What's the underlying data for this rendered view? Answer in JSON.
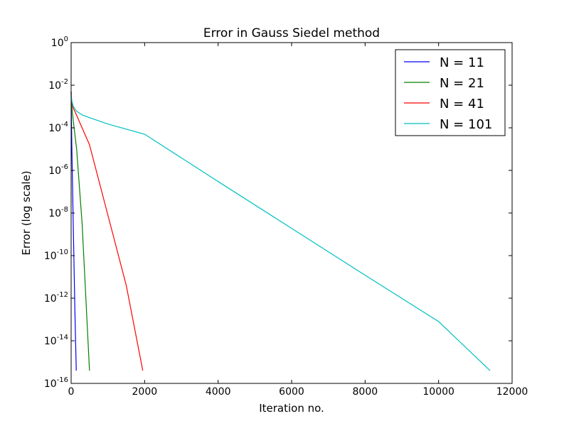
{
  "chart_data": {
    "type": "line",
    "title": "Error in Gauss Siedel method",
    "xlabel": "Iteration no.",
    "ylabel": "Error (log scale)",
    "xlim": [
      0,
      12000
    ],
    "ylim": [
      1e-16,
      1
    ],
    "yscale": "log",
    "x_ticks": [
      {
        "value": 0,
        "label": "0"
      },
      {
        "value": 2000,
        "label": "2000"
      },
      {
        "value": 4000,
        "label": "4000"
      },
      {
        "value": 6000,
        "label": "6000"
      },
      {
        "value": 8000,
        "label": "8000"
      },
      {
        "value": 10000,
        "label": "10000"
      },
      {
        "value": 12000,
        "label": "12000"
      }
    ],
    "y_ticks": [
      {
        "exp": 0,
        "base": "10",
        "sup": "0"
      },
      {
        "exp": -2,
        "base": "10",
        "sup": "-2"
      },
      {
        "exp": -4,
        "base": "10",
        "sup": "-4"
      },
      {
        "exp": -6,
        "base": "10",
        "sup": "-6"
      },
      {
        "exp": -8,
        "base": "10",
        "sup": "-8"
      },
      {
        "exp": -10,
        "base": "10",
        "sup": "-10"
      },
      {
        "exp": -12,
        "base": "10",
        "sup": "-12"
      },
      {
        "exp": -14,
        "base": "10",
        "sup": "-14"
      },
      {
        "exp": -16,
        "base": "10",
        "sup": "-16"
      }
    ],
    "grid": false,
    "legend_position": "top-right",
    "series": [
      {
        "name": "N = 11",
        "color": "#0000ff",
        "x": [
          0,
          5,
          20,
          60,
          100,
          140
        ],
        "y": [
          0.005,
          0.0006,
          1e-05,
          2e-09,
          4e-13,
          4e-16
        ]
      },
      {
        "name": "N = 21",
        "color": "#008000",
        "x": [
          0,
          5,
          20,
          60,
          150,
          300,
          500
        ],
        "y": [
          0.005,
          0.002,
          0.0009,
          0.0002,
          1e-05,
          3e-09,
          4e-16
        ]
      },
      {
        "name": "N = 41",
        "color": "#ff0000",
        "x": [
          0,
          5,
          20,
          60,
          100,
          500,
          1000,
          1500,
          1950
        ],
        "y": [
          0.005,
          0.003,
          0.0015,
          0.0008,
          0.0006,
          1.6e-05,
          8e-09,
          4e-12,
          4e-16
        ]
      },
      {
        "name": "N = 101",
        "color": "#00bfbf",
        "x": [
          0,
          5,
          20,
          60,
          150,
          300,
          500,
          1000,
          2000,
          4000,
          6000,
          8000,
          10000,
          11400
        ],
        "y": [
          0.005,
          0.003,
          0.0018,
          0.001,
          0.0006,
          0.0004,
          0.0003,
          0.00015,
          5e-05,
          3e-07,
          1.9e-09,
          1.2e-11,
          8e-14,
          4e-16
        ]
      }
    ]
  }
}
